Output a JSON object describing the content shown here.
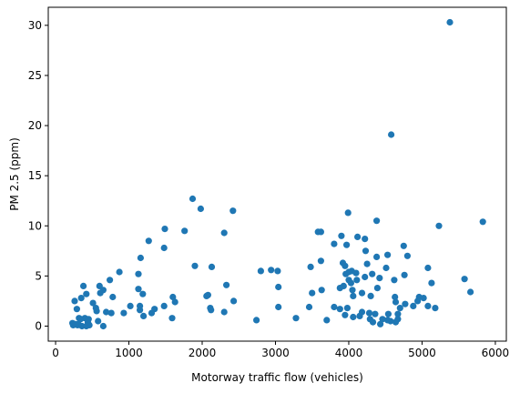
{
  "chart_data": {
    "type": "scatter",
    "xlabel": "Motorway traffic flow (vehicles)",
    "ylabel": "PM 2.5 (ppm)",
    "xlim": [
      -100,
      6150
    ],
    "ylim": [
      -1.5,
      31.8
    ],
    "xticks": [
      0,
      1000,
      2000,
      3000,
      4000,
      5000,
      6000
    ],
    "yticks": [
      0,
      5,
      10,
      15,
      20,
      25,
      30
    ],
    "grid": false,
    "marker_color": "#1f77b4",
    "points": [
      [
        5380,
        30.3
      ],
      [
        4580,
        19.1
      ],
      [
        1870,
        12.7
      ],
      [
        1980,
        11.7
      ],
      [
        2420,
        11.5
      ],
      [
        3990,
        11.3
      ],
      [
        4380,
        10.5
      ],
      [
        5830,
        10.4
      ],
      [
        5230,
        10.0
      ],
      [
        1490,
        9.7
      ],
      [
        1760,
        9.5
      ],
      [
        3580,
        9.4
      ],
      [
        3620,
        9.4
      ],
      [
        2300,
        9.3
      ],
      [
        3900,
        9.0
      ],
      [
        4120,
        8.9
      ],
      [
        4220,
        8.7
      ],
      [
        1270,
        8.5
      ],
      [
        3800,
        8.2
      ],
      [
        3970,
        8.1
      ],
      [
        4750,
        8.0
      ],
      [
        1480,
        7.8
      ],
      [
        4230,
        7.5
      ],
      [
        4800,
        7.0
      ],
      [
        4530,
        7.1
      ],
      [
        4380,
        6.9
      ],
      [
        1160,
        6.8
      ],
      [
        3620,
        6.5
      ],
      [
        3920,
        6.3
      ],
      [
        3950,
        6.0
      ],
      [
        4250,
        6.2
      ],
      [
        1900,
        6.0
      ],
      [
        2130,
        5.9
      ],
      [
        3480,
        5.9
      ],
      [
        4510,
        5.8
      ],
      [
        5080,
        5.8
      ],
      [
        4040,
        5.5
      ],
      [
        2800,
        5.5
      ],
      [
        2940,
        5.6
      ],
      [
        3030,
        5.5
      ],
      [
        870,
        5.4
      ],
      [
        3960,
        5.2
      ],
      [
        4000,
        5.4
      ],
      [
        4100,
        5.3
      ],
      [
        4320,
        5.2
      ],
      [
        4760,
        5.1
      ],
      [
        1130,
        5.2
      ],
      [
        4220,
        4.9
      ],
      [
        4420,
        4.8
      ],
      [
        4110,
        4.6
      ],
      [
        4000,
        4.6
      ],
      [
        4030,
        4.3
      ],
      [
        5580,
        4.7
      ],
      [
        4620,
        4.6
      ],
      [
        5130,
        4.3
      ],
      [
        740,
        4.6
      ],
      [
        380,
        4.0
      ],
      [
        600,
        4.0
      ],
      [
        3930,
        4.0
      ],
      [
        2330,
        4.1
      ],
      [
        3040,
        3.9
      ],
      [
        3880,
        3.8
      ],
      [
        4390,
        3.8
      ],
      [
        4050,
        3.6
      ],
      [
        4180,
        3.3
      ],
      [
        3630,
        3.6
      ],
      [
        3500,
        3.3
      ],
      [
        5660,
        3.4
      ],
      [
        650,
        3.6
      ],
      [
        1130,
        3.7
      ],
      [
        1190,
        3.2
      ],
      [
        780,
        2.9
      ],
      [
        610,
        3.3
      ],
      [
        420,
        3.2
      ],
      [
        260,
        2.5
      ],
      [
        350,
        2.8
      ],
      [
        1600,
        2.9
      ],
      [
        2060,
        3.0
      ],
      [
        2080,
        3.1
      ],
      [
        2430,
        2.5
      ],
      [
        4060,
        3.0
      ],
      [
        4300,
        3.0
      ],
      [
        4630,
        2.9
      ],
      [
        4960,
        2.9
      ],
      [
        5020,
        2.8
      ],
      [
        4940,
        2.5
      ],
      [
        4640,
        2.4
      ],
      [
        5080,
        2.0
      ],
      [
        4880,
        2.0
      ],
      [
        1630,
        2.4
      ],
      [
        1480,
        2.0
      ],
      [
        1020,
        2.0
      ],
      [
        1150,
        2.0
      ],
      [
        1350,
        1.7
      ],
      [
        3800,
        1.9
      ],
      [
        3980,
        1.8
      ],
      [
        3880,
        1.7
      ],
      [
        3460,
        1.9
      ],
      [
        3040,
        1.9
      ],
      [
        2110,
        1.8
      ],
      [
        2120,
        1.6
      ],
      [
        2300,
        1.4
      ],
      [
        1150,
        1.6
      ],
      [
        510,
        2.3
      ],
      [
        550,
        1.8
      ],
      [
        560,
        1.5
      ],
      [
        290,
        1.7
      ],
      [
        690,
        1.4
      ],
      [
        760,
        1.3
      ],
      [
        930,
        1.3
      ],
      [
        1310,
        1.3
      ],
      [
        4180,
        1.4
      ],
      [
        4280,
        1.3
      ],
      [
        4360,
        1.2
      ],
      [
        4540,
        1.2
      ],
      [
        4670,
        1.2
      ],
      [
        4150,
        1.0
      ],
      [
        5180,
        1.8
      ],
      [
        4700,
        1.8
      ],
      [
        4770,
        2.2
      ],
      [
        1200,
        1.0
      ],
      [
        1590,
        0.8
      ],
      [
        3280,
        0.8
      ],
      [
        3950,
        1.1
      ],
      [
        4060,
        0.9
      ],
      [
        4290,
        0.7
      ],
      [
        4670,
        0.7
      ],
      [
        4460,
        0.7
      ],
      [
        4570,
        0.5
      ],
      [
        4530,
        0.6
      ],
      [
        4640,
        0.4
      ],
      [
        3700,
        0.6
      ],
      [
        2740,
        0.6
      ],
      [
        320,
        0.8
      ],
      [
        400,
        0.8
      ],
      [
        450,
        0.7
      ],
      [
        230,
        0.3
      ],
      [
        240,
        0.1
      ],
      [
        300,
        0.1
      ],
      [
        360,
        0.0
      ],
      [
        420,
        0.0
      ],
      [
        460,
        0.1
      ],
      [
        580,
        0.5
      ],
      [
        650,
        0.0
      ],
      [
        340,
        0.7
      ],
      [
        440,
        0.4
      ],
      [
        310,
        0.2
      ],
      [
        270,
        0.2
      ],
      [
        4430,
        0.2
      ],
      [
        4330,
        0.4
      ]
    ]
  }
}
